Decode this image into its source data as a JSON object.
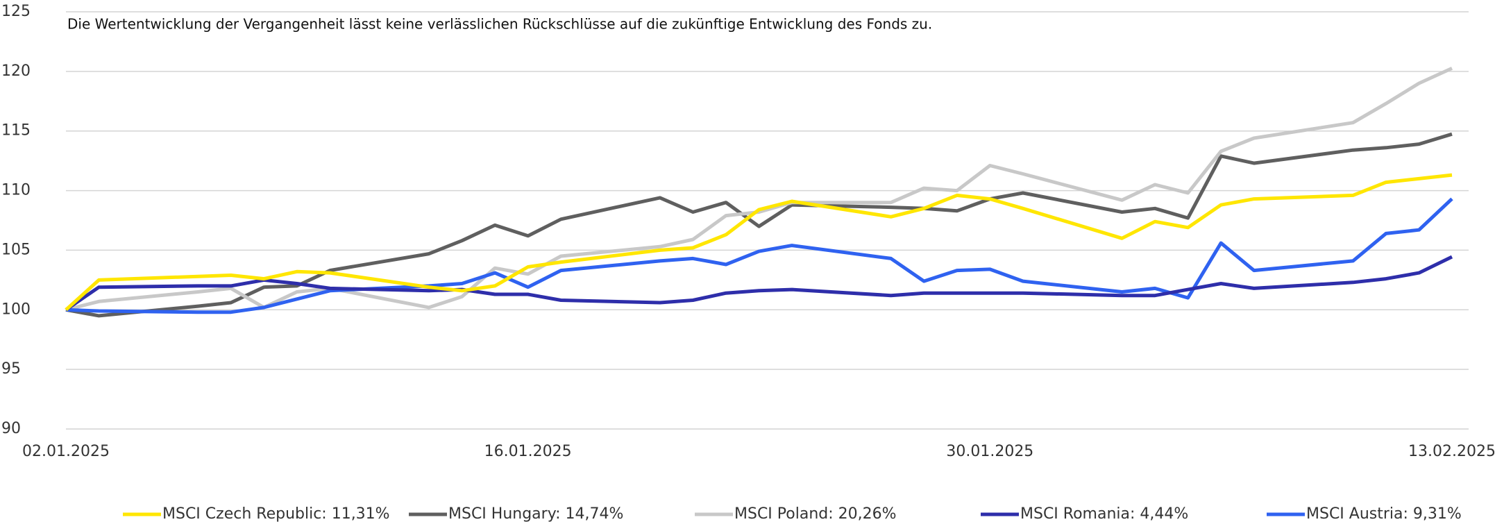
{
  "chart_data": {
    "type": "line",
    "subtitle": "Die Wertentwicklung der Vergangenheit lässt keine verlässlichen Rückschlüsse auf die zukünftige Entwicklung des Fonds zu.",
    "x": [
      "02.01.2025",
      "03.01.2025",
      "06.01.2025",
      "07.01.2025",
      "08.01.2025",
      "09.01.2025",
      "10.01.2025",
      "13.01.2025",
      "14.01.2025",
      "15.01.2025",
      "16.01.2025",
      "17.01.2025",
      "20.01.2025",
      "21.01.2025",
      "22.01.2025",
      "23.01.2025",
      "24.01.2025",
      "27.01.2025",
      "28.01.2025",
      "29.01.2025",
      "30.01.2025",
      "31.01.2025",
      "03.02.2025",
      "04.02.2025",
      "05.02.2025",
      "06.02.2025",
      "07.02.2025",
      "10.02.2025",
      "11.02.2025",
      "12.02.2025",
      "13.02.2025"
    ],
    "xticks": [
      "02.01.2025",
      "16.01.2025",
      "30.01.2025",
      "13.02.2025"
    ],
    "ylim": [
      90,
      125
    ],
    "yticks": [
      90,
      95,
      100,
      105,
      110,
      115,
      120,
      125
    ],
    "grid": true,
    "legend": "bottom",
    "series": [
      {
        "name": "MSCI Czech Republic: 11,31%",
        "color": "#ffe600",
        "values": [
          100,
          102.5,
          102.8,
          102.9,
          102.6,
          103.2,
          103.1,
          101.9,
          101.6,
          102.0,
          103.6,
          104.0,
          105.0,
          105.2,
          106.3,
          108.4,
          109.1,
          107.8,
          108.5,
          109.6,
          109.3,
          108.5,
          106.0,
          107.4,
          106.9,
          108.8,
          109.3,
          109.6,
          110.7,
          111.0,
          111.31
        ]
      },
      {
        "name": "MSCI Hungary: 14,74%",
        "color": "#5f5f5f",
        "values": [
          100,
          99.5,
          100.3,
          100.6,
          101.9,
          102.0,
          103.3,
          104.7,
          105.8,
          107.1,
          106.2,
          107.6,
          109.4,
          108.2,
          109.0,
          107.0,
          108.8,
          108.6,
          108.5,
          108.3,
          109.3,
          109.8,
          108.2,
          108.5,
          107.7,
          112.9,
          112.3,
          113.4,
          113.6,
          113.9,
          114.74
        ]
      },
      {
        "name": "MSCI Poland: 20,26%",
        "color": "#c8c8c8",
        "values": [
          100,
          100.7,
          101.5,
          101.8,
          100.2,
          101.5,
          101.8,
          100.2,
          101.1,
          103.5,
          103.0,
          104.5,
          105.3,
          105.9,
          107.9,
          108.2,
          109.0,
          109.0,
          110.2,
          110.0,
          112.1,
          111.4,
          109.2,
          110.5,
          109.8,
          113.3,
          114.4,
          115.7,
          117.3,
          119.0,
          120.26
        ]
      },
      {
        "name": "MSCI Romania: 4,44%",
        "color": "#2e2eaa",
        "values": [
          100,
          101.9,
          102.0,
          102.0,
          102.5,
          102.2,
          101.8,
          101.6,
          101.7,
          101.3,
          101.3,
          100.8,
          100.6,
          100.8,
          101.4,
          101.6,
          101.7,
          101.2,
          101.4,
          101.4,
          101.4,
          101.4,
          101.2,
          101.2,
          101.7,
          102.2,
          101.8,
          102.3,
          102.6,
          103.1,
          104.44
        ]
      },
      {
        "name": "MSCI Austria: 9,31%",
        "color": "#2f62f0",
        "values": [
          100,
          99.9,
          99.8,
          99.8,
          100.2,
          100.9,
          101.6,
          102.0,
          102.2,
          103.1,
          101.9,
          103.3,
          104.1,
          104.3,
          103.8,
          104.9,
          105.4,
          104.3,
          102.4,
          103.3,
          103.4,
          102.4,
          101.5,
          101.8,
          101.0,
          105.6,
          103.3,
          104.1,
          106.4,
          106.7,
          109.31
        ]
      }
    ]
  }
}
